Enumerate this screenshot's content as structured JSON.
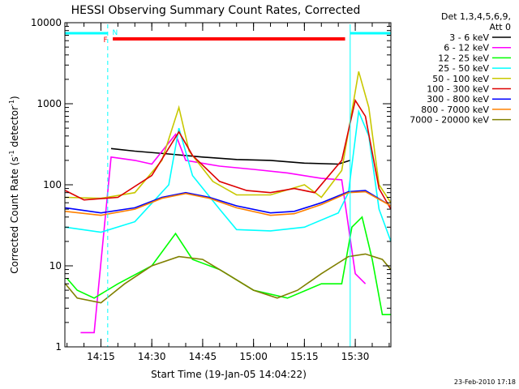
{
  "chart_data": {
    "type": "line",
    "title": "HESSI Observing Summary Count Rates, Corrected",
    "xlabel": "Start Time (19-Jan-05 14:04:22)",
    "ylabel": "Corrected Count Rate (s⁻¹ detector⁻¹)",
    "ylabel_main": "Corrected Count Rate (s",
    "ylabel_sup1": "-1",
    "ylabel_mid": " detector",
    "ylabel_sup2": "-1",
    "ylabel_end": ")",
    "y_scale": "log",
    "ylim": [
      1,
      10000
    ],
    "xlim": [
      "14:04:22",
      "15:40:30"
    ],
    "x_ticks": [
      "14:15",
      "14:30",
      "14:45",
      "15:00",
      "15:15",
      "15:30"
    ],
    "y_ticks": [
      "1",
      "10",
      "100",
      "1000",
      "10000"
    ],
    "legend_placement": "right",
    "legend_header": [
      "Det 1,3,4,5,6,9,",
      "Att 0"
    ],
    "flags": {
      "labels": [
        "F",
        "N"
      ],
      "flare_bar": {
        "label": "F",
        "start": "14:18:30",
        "end": "15:27:00",
        "color": "#ff0000"
      },
      "night_bars": [
        {
          "label": "N",
          "start": "14:04:22",
          "end": "14:17:00",
          "color": "#00ffff"
        },
        {
          "start": "15:28:30",
          "end": "15:40:30",
          "color": "#00ffff"
        }
      ]
    },
    "footer_date": "23-Feb-2010 17:18",
    "series": [
      {
        "name": "3 - 6 keV",
        "color": "#000000",
        "points": [
          [
            "14:18:00",
            280
          ],
          [
            "14:25:00",
            260
          ],
          [
            "14:35:00",
            240
          ],
          [
            "14:45:00",
            220
          ],
          [
            "14:55:00",
            205
          ],
          [
            "15:05:00",
            200
          ],
          [
            "15:15:00",
            185
          ],
          [
            "15:25:00",
            180
          ],
          [
            "15:28:30",
            200
          ]
        ]
      },
      {
        "name": "6 - 12 keV",
        "color": "#ff00ff",
        "points": [
          [
            "14:09:00",
            1.5
          ],
          [
            "14:13:00",
            1.5
          ],
          [
            "14:18:00",
            220
          ],
          [
            "14:25:00",
            200
          ],
          [
            "14:30:00",
            180
          ],
          [
            "14:37:00",
            420
          ],
          [
            "14:40:00",
            200
          ],
          [
            "14:50:00",
            170
          ],
          [
            "15:00:00",
            155
          ],
          [
            "15:10:00",
            140
          ],
          [
            "15:20:00",
            120
          ],
          [
            "15:26:00",
            115
          ],
          [
            "15:30:00",
            8
          ],
          [
            "15:33:00",
            6
          ]
        ]
      },
      {
        "name": "12 - 25 keV",
        "color": "#00ff00",
        "points": [
          [
            "14:05:00",
            7
          ],
          [
            "14:08:00",
            5
          ],
          [
            "14:13:00",
            4
          ],
          [
            "14:20:00",
            6
          ],
          [
            "14:30:00",
            10
          ],
          [
            "14:37:00",
            25
          ],
          [
            "14:42:00",
            12
          ],
          [
            "14:50:00",
            9
          ],
          [
            "15:00:00",
            5
          ],
          [
            "15:10:00",
            4
          ],
          [
            "15:20:00",
            6
          ],
          [
            "15:26:00",
            6
          ],
          [
            "15:29:00",
            30
          ],
          [
            "15:32:00",
            40
          ],
          [
            "15:35:00",
            12
          ],
          [
            "15:38:00",
            2.5
          ],
          [
            "15:40:30",
            2.5
          ]
        ]
      },
      {
        "name": "25 - 50 keV",
        "color": "#00ffff",
        "points": [
          [
            "14:04:30",
            30
          ],
          [
            "14:15:00",
            26
          ],
          [
            "14:25:00",
            35
          ],
          [
            "14:35:00",
            100
          ],
          [
            "14:38:00",
            500
          ],
          [
            "14:42:00",
            130
          ],
          [
            "14:50:00",
            50
          ],
          [
            "14:55:00",
            28
          ],
          [
            "15:05:00",
            27
          ],
          [
            "15:15:00",
            30
          ],
          [
            "15:25:00",
            45
          ],
          [
            "15:28:00",
            80
          ],
          [
            "15:31:00",
            800
          ],
          [
            "15:34:00",
            400
          ],
          [
            "15:37:00",
            50
          ],
          [
            "15:40:30",
            20
          ]
        ]
      },
      {
        "name": "50 - 100 keV",
        "color": "#c8c800",
        "points": [
          [
            "14:04:30",
            70
          ],
          [
            "14:15:00",
            68
          ],
          [
            "14:25:00",
            80
          ],
          [
            "14:33:00",
            200
          ],
          [
            "14:38:00",
            900
          ],
          [
            "14:41:00",
            260
          ],
          [
            "14:48:00",
            110
          ],
          [
            "14:55:00",
            75
          ],
          [
            "15:05:00",
            75
          ],
          [
            "15:15:00",
            100
          ],
          [
            "15:20:00",
            70
          ],
          [
            "15:26:00",
            150
          ],
          [
            "15:31:00",
            2500
          ],
          [
            "15:34:00",
            900
          ],
          [
            "15:37:00",
            100
          ],
          [
            "15:40:30",
            60
          ]
        ]
      },
      {
        "name": "100 - 300 keV",
        "color": "#dd0000",
        "points": [
          [
            "14:04:30",
            85
          ],
          [
            "14:10:00",
            65
          ],
          [
            "14:20:00",
            70
          ],
          [
            "14:30:00",
            130
          ],
          [
            "14:38:00",
            450
          ],
          [
            "14:42:00",
            230
          ],
          [
            "14:50:00",
            110
          ],
          [
            "14:58:00",
            85
          ],
          [
            "15:05:00",
            80
          ],
          [
            "15:12:00",
            90
          ],
          [
            "15:18:00",
            80
          ],
          [
            "15:26:00",
            200
          ],
          [
            "15:30:00",
            1100
          ],
          [
            "15:33:00",
            700
          ],
          [
            "15:37:00",
            90
          ],
          [
            "15:40:30",
            50
          ]
        ]
      },
      {
        "name": "300 - 800 keV",
        "color": "#0000ff",
        "points": [
          [
            "14:04:30",
            52
          ],
          [
            "14:15:00",
            45
          ],
          [
            "14:25:00",
            52
          ],
          [
            "14:33:00",
            70
          ],
          [
            "14:40:00",
            80
          ],
          [
            "14:47:00",
            70
          ],
          [
            "14:55:00",
            55
          ],
          [
            "15:05:00",
            45
          ],
          [
            "15:12:00",
            47
          ],
          [
            "15:20:00",
            60
          ],
          [
            "15:28:00",
            82
          ],
          [
            "15:33:00",
            85
          ],
          [
            "15:40:30",
            55
          ]
        ]
      },
      {
        "name": "800 - 7000 keV",
        "color": "#ff8000",
        "points": [
          [
            "14:04:30",
            47
          ],
          [
            "14:15:00",
            42
          ],
          [
            "14:25:00",
            50
          ],
          [
            "14:33:00",
            68
          ],
          [
            "14:40:00",
            78
          ],
          [
            "14:47:00",
            68
          ],
          [
            "14:55:00",
            52
          ],
          [
            "15:05:00",
            42
          ],
          [
            "15:12:00",
            44
          ],
          [
            "15:20:00",
            57
          ],
          [
            "15:28:00",
            80
          ],
          [
            "15:33:00",
            82
          ],
          [
            "15:40:30",
            55
          ]
        ]
      },
      {
        "name": "7000 - 20000 keV",
        "color": "#808000",
        "points": [
          [
            "14:04:30",
            6
          ],
          [
            "14:08:00",
            4
          ],
          [
            "14:15:00",
            3.5
          ],
          [
            "14:22:00",
            6
          ],
          [
            "14:30:00",
            10
          ],
          [
            "14:38:00",
            13
          ],
          [
            "14:45:00",
            12
          ],
          [
            "14:52:00",
            8
          ],
          [
            "15:00:00",
            5
          ],
          [
            "15:07:00",
            4
          ],
          [
            "15:13:00",
            5
          ],
          [
            "15:20:00",
            8
          ],
          [
            "15:28:00",
            13
          ],
          [
            "15:33:00",
            14
          ],
          [
            "15:38:00",
            12
          ],
          [
            "15:40:30",
            9
          ]
        ]
      }
    ]
  }
}
